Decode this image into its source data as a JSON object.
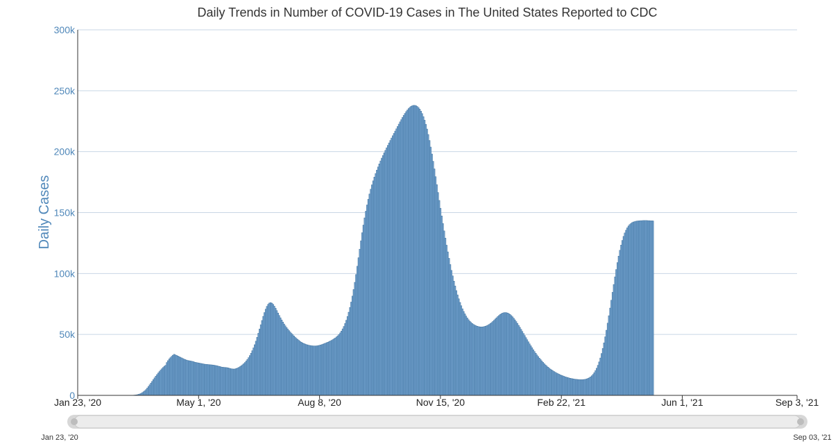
{
  "chart_data": {
    "type": "bar",
    "title": "Daily Trends in Number of COVID-19 Cases in The United States Reported to CDC",
    "xlabel": "",
    "ylabel": "Daily Cases",
    "x_range": [
      "2020-01-23",
      "2021-09-03"
    ],
    "ylim": [
      0,
      300000
    ],
    "y_ticks": [
      0,
      50000,
      100000,
      150000,
      200000,
      250000,
      300000
    ],
    "y_tick_labels": [
      "0",
      "50k",
      "100k",
      "150k",
      "200k",
      "250k",
      "300k"
    ],
    "x_ticks": [
      {
        "date": "2020-01-23",
        "label": "Jan 23, '20"
      },
      {
        "date": "2020-05-01",
        "label": "May 1, '20"
      },
      {
        "date": "2020-08-08",
        "label": "Aug 8, '20"
      },
      {
        "date": "2020-11-15",
        "label": "Nov 15, '20"
      },
      {
        "date": "2021-02-22",
        "label": "Feb 22, '21"
      },
      {
        "date": "2021-06-01",
        "label": "Jun 1, '21"
      },
      {
        "date": "2021-09-03",
        "label": "Sep 3, '21"
      }
    ],
    "grid": true,
    "legend": "none",
    "bar_color": "#6f9fcb",
    "bar_stroke": "#3a6c99",
    "range_selector": {
      "start_label": "Jan 23, '20",
      "end_label": "Sep 03, '21"
    },
    "series": [
      {
        "values_start": "2020-01-23",
        "values": [
          0,
          0,
          0,
          0,
          0,
          0,
          0,
          0,
          0,
          0,
          0,
          0,
          0,
          0,
          0,
          0,
          0,
          0,
          0,
          0,
          0,
          0,
          0,
          0,
          0,
          0,
          0,
          0,
          0,
          0,
          0,
          0,
          0,
          0,
          0,
          0,
          0,
          0,
          0,
          0,
          0,
          0,
          0,
          0,
          100,
          150,
          200,
          300,
          400,
          600,
          900,
          1200,
          1700,
          2300,
          3000,
          3800,
          4800,
          6000,
          7300,
          8700,
          10100,
          11500,
          13000,
          14400,
          15800,
          17100,
          18400,
          19600,
          20800,
          21900,
          22900,
          23900,
          24700,
          27000,
          28500,
          29900,
          31000,
          32100,
          33000,
          33700,
          33200,
          32800,
          32300,
          31800,
          31300,
          30800,
          30300,
          29800,
          29400,
          29000,
          28700,
          28500,
          28300,
          28100,
          27900,
          27600,
          27200,
          27000,
          26800,
          26600,
          26400,
          26200,
          26000,
          25800,
          25600,
          25500,
          25400,
          25300,
          25200,
          25100,
          25000,
          24900,
          24700,
          24500,
          24300,
          24000,
          23800,
          23500,
          23200,
          23100,
          23000,
          22900,
          22800,
          22600,
          22300,
          22000,
          21800,
          21700,
          21600,
          21800,
          22100,
          22500,
          23000,
          23600,
          24300,
          25100,
          26000,
          27000,
          28200,
          29500,
          31000,
          32700,
          34600,
          36700,
          39000,
          41600,
          44500,
          47700,
          51000,
          54500,
          58000,
          61500,
          64900,
          68000,
          70800,
          73100,
          74800,
          75800,
          76100,
          75700,
          74700,
          73200,
          71500,
          69600,
          67600,
          65600,
          63700,
          61900,
          60200,
          58600,
          57100,
          55700,
          54400,
          53200,
          52000,
          50900,
          49800,
          48800,
          47800,
          46900,
          46000,
          45200,
          44400,
          43700,
          43100,
          42600,
          42200,
          41800,
          41500,
          41200,
          41000,
          40800,
          40700,
          40600,
          40600,
          40600,
          40700,
          40900,
          41100,
          41400,
          41700,
          42100,
          42500,
          42900,
          43300,
          43700,
          44200,
          44700,
          45200,
          45800,
          46500,
          47200,
          48000,
          48900,
          50000,
          51300,
          52800,
          54600,
          56600,
          59000,
          61700,
          64800,
          68300,
          72200,
          76600,
          81500,
          86900,
          92800,
          99200,
          106000,
          113000,
          120000,
          126900,
          133500,
          139800,
          145700,
          151200,
          156300,
          161000,
          165300,
          169200,
          172800,
          176100,
          179200,
          182100,
          184900,
          187500,
          190000,
          192400,
          194700,
          196900,
          199000,
          201100,
          203200,
          205200,
          207200,
          209200,
          211200,
          213100,
          215000,
          216900,
          218800,
          220700,
          222600,
          224500,
          226300,
          228100,
          229800,
          231400,
          232900,
          234200,
          235400,
          236400,
          237200,
          237700,
          238000,
          238000,
          237700,
          237100,
          236200,
          234900,
          233300,
          231300,
          228800,
          225900,
          222500,
          218600,
          214100,
          209200,
          203800,
          198100,
          192100,
          185900,
          179500,
          173000,
          166500,
          160000,
          153600,
          147300,
          141100,
          135000,
          129100,
          123300,
          117800,
          112500,
          107400,
          102600,
          98100,
          93800,
          89800,
          86000,
          82500,
          79300,
          76300,
          73600,
          71100,
          68900,
          66900,
          65100,
          63500,
          62100,
          60900,
          59900,
          59000,
          58300,
          57700,
          57200,
          56800,
          56500,
          56300,
          56200,
          56200,
          56300,
          56500,
          56800,
          57200,
          57700,
          58300,
          59000,
          59800,
          60700,
          61700,
          62700,
          63700,
          64700,
          65600,
          66400,
          67100,
          67600,
          67900,
          68000,
          67900,
          67600,
          67100,
          66400,
          65500,
          64500,
          63300,
          62000,
          60600,
          59100,
          57500,
          55900,
          54200,
          52500,
          50800,
          49100,
          47400,
          45700,
          44000,
          42300,
          40700,
          39100,
          37500,
          36000,
          34600,
          33200,
          31900,
          30600,
          29400,
          28200,
          27100,
          26000,
          25000,
          24100,
          23200,
          22400,
          21600,
          20900,
          20200,
          19600,
          19000,
          18400,
          17900,
          17400,
          16900,
          16500,
          16100,
          15700,
          15300,
          15000,
          14700,
          14400,
          14100,
          13900,
          13700,
          13500,
          13300,
          13200,
          13100,
          13000,
          12900,
          12900,
          12900,
          13000,
          13100,
          13300,
          13600,
          14000,
          14500,
          15200,
          16100,
          17200,
          18600,
          20300,
          22300,
          24700,
          27500,
          30700,
          34400,
          38500,
          43100,
          48100,
          53500,
          59300,
          65400,
          71700,
          78100,
          84600,
          91000,
          97300,
          103300,
          109000,
          114300,
          119100,
          123400,
          127200,
          130500,
          133300,
          135600,
          137500,
          139000,
          140200,
          141100,
          141800,
          142300,
          142600,
          142900,
          143100,
          143200,
          143300,
          143400,
          143400,
          143500,
          143500,
          143500,
          143500,
          143400,
          143400,
          143300,
          143300,
          143200
        ]
      }
    ]
  }
}
